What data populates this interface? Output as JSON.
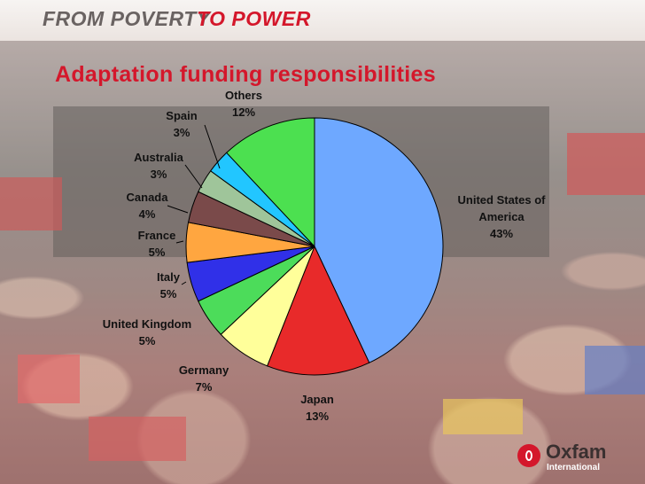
{
  "header": {
    "part1": "FROM POVERTY",
    "part2": "TO POWER"
  },
  "logo": {
    "name": "Oxfam",
    "subtitle": "International"
  },
  "chart_data": {
    "type": "pie",
    "title": "Adaptation funding responsibilities",
    "slices": [
      {
        "label": "United States of America",
        "value": 43,
        "pct": "43%",
        "color": "#6ea8ff"
      },
      {
        "label": "Japan",
        "value": 13,
        "pct": "13%",
        "color": "#e82a2a"
      },
      {
        "label": "Germany",
        "value": 7,
        "pct": "7%",
        "color": "#ffff9a"
      },
      {
        "label": "United Kingdom",
        "value": 5,
        "pct": "5%",
        "color": "#4cdc5a"
      },
      {
        "label": "Italy",
        "value": 5,
        "pct": "5%",
        "color": "#3030e8"
      },
      {
        "label": "France",
        "value": 5,
        "pct": "5%",
        "color": "#ffa640"
      },
      {
        "label": "Canada",
        "value": 4,
        "pct": "4%",
        "color": "#7a4a4a"
      },
      {
        "label": "Australia",
        "value": 3,
        "pct": "3%",
        "color": "#9fc59a"
      },
      {
        "label": "Spain",
        "value": 3,
        "pct": "3%",
        "color": "#22c6ff"
      },
      {
        "label": "Others",
        "value": 12,
        "pct": "12%",
        "color": "#4ce050"
      }
    ],
    "legend": "none"
  }
}
